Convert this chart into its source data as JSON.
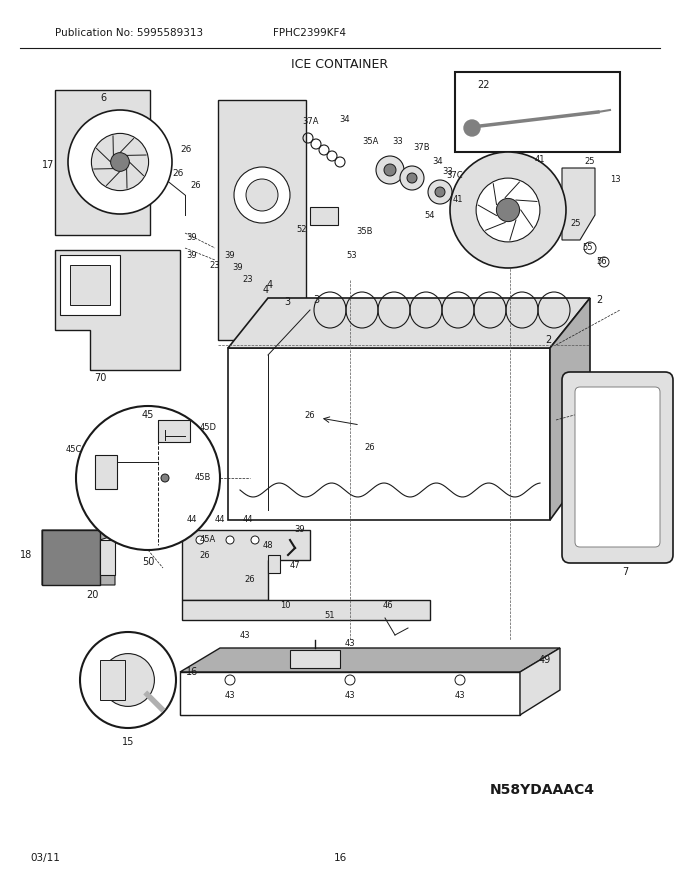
{
  "pub_no": "Publication No: 5995589313",
  "model": "FPHC2399KF4",
  "title": "ICE CONTAINER",
  "diagram_code": "N58YDAAAC4",
  "date": "03/11",
  "page": "16",
  "bg_color": "#ffffff",
  "fig_width": 6.8,
  "fig_height": 8.8,
  "dpi": 100,
  "title_fontsize": 9,
  "header_fontsize": 7.5,
  "footer_fontsize": 7.5,
  "diagram_code_fontsize": 10,
  "line_color": "#1a1a1a",
  "gray_light": "#e0e0e0",
  "gray_mid": "#b0b0b0",
  "gray_dark": "#808080"
}
